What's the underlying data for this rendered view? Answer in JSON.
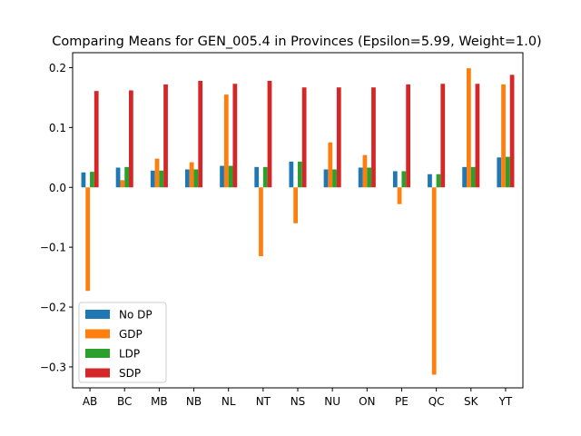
{
  "chart_data": {
    "type": "bar",
    "title": "Comparing Means for GEN_005.4 in Provinces (Epsilon=5.99, Weight=1.0)",
    "xlabel": "",
    "ylabel": "",
    "categories": [
      "AB",
      "BC",
      "MB",
      "NB",
      "NL",
      "NT",
      "NS",
      "NU",
      "ON",
      "PE",
      "QC",
      "SK",
      "YT"
    ],
    "ylim": [
      -0.335,
      0.225
    ],
    "yticks": [
      -0.3,
      -0.2,
      -0.1,
      0.0,
      0.1,
      0.2
    ],
    "ytick_labels": [
      "−0.3",
      "−0.2",
      "−0.1",
      "0.0",
      "0.1",
      "0.2"
    ],
    "grid": false,
    "legend_position": "lower-left",
    "series": [
      {
        "name": "No DP",
        "color": "#1f77b4",
        "values": [
          0.025,
          0.033,
          0.028,
          0.03,
          0.036,
          0.034,
          0.043,
          0.03,
          0.033,
          0.027,
          0.022,
          0.034,
          0.05
        ]
      },
      {
        "name": "GDP",
        "color": "#ff7f0e",
        "values": [
          -0.173,
          0.012,
          0.048,
          0.042,
          0.155,
          -0.115,
          -0.06,
          0.075,
          0.054,
          -0.028,
          -0.313,
          0.199,
          0.172
        ]
      },
      {
        "name": "LDP",
        "color": "#2ca02c",
        "values": [
          0.026,
          0.034,
          0.028,
          0.03,
          0.036,
          0.034,
          0.043,
          0.03,
          0.033,
          0.027,
          0.022,
          0.034,
          0.051
        ]
      },
      {
        "name": "SDP",
        "color": "#d62728",
        "values": [
          0.161,
          0.162,
          0.172,
          0.178,
          0.173,
          0.178,
          0.167,
          0.167,
          0.167,
          0.172,
          0.173,
          0.173,
          0.188
        ]
      }
    ]
  }
}
